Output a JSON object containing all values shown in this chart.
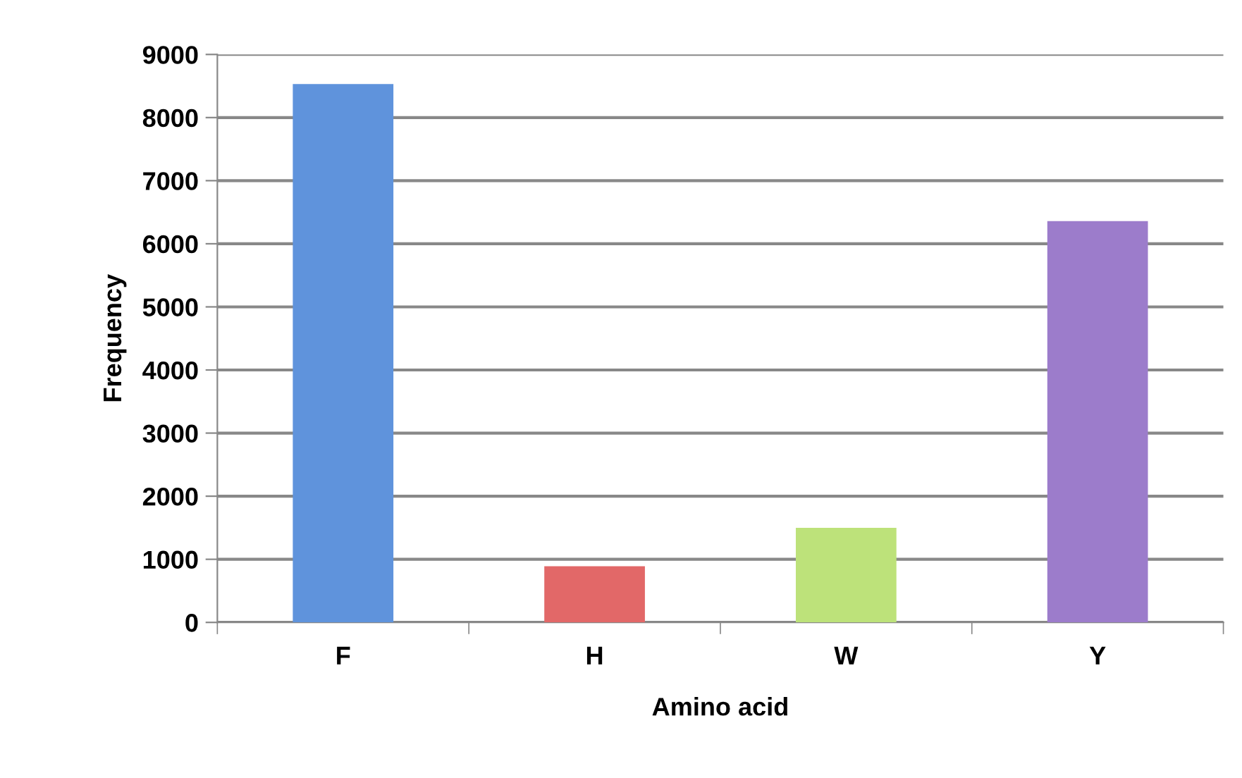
{
  "chart_data": {
    "type": "bar",
    "xlabel": "Amino acid",
    "ylabel": "Frequency",
    "categories": [
      "F",
      "H",
      "W",
      "Y"
    ],
    "values": [
      8530,
      890,
      1500,
      6360
    ],
    "colors": [
      "#5f93dc",
      "#e26868",
      "#bde27a",
      "#9c7ccb"
    ],
    "ylim": [
      0,
      9000
    ],
    "yticks": [
      0,
      1000,
      2000,
      3000,
      4000,
      5000,
      6000,
      7000,
      8000,
      9000
    ],
    "grid": "y",
    "legend": false
  }
}
